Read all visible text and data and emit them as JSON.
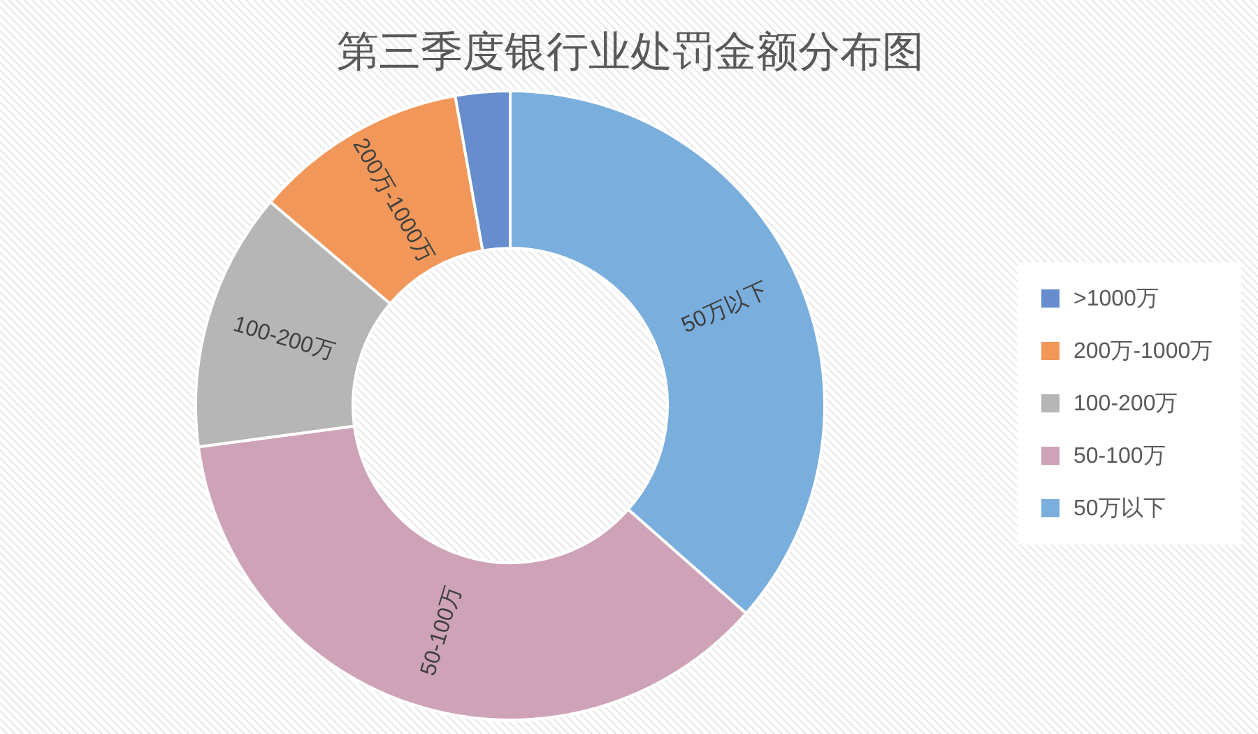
{
  "chart_data": {
    "type": "donut",
    "title": "第三季度银行业处罚金额分布图",
    "categories": [
      "50万以下",
      "50-100万",
      "100-200万",
      "200万-1000万",
      ">1000万"
    ],
    "values": [
      36.5,
      36.4,
      13.3,
      11.0,
      2.8
    ],
    "colors": [
      "#7aaedd",
      "#cfa3b7",
      "#b6b6b6",
      "#f19759",
      "#678dce"
    ],
    "annotations": [
      {
        "text": "50万以下",
        "x": "50万以下"
      },
      {
        "text": "50-100万",
        "x": "50-100万"
      },
      {
        "text": "100-200万",
        "x": "100-200万"
      },
      {
        "text": "200万-1000万",
        "x": "200万-1000万"
      }
    ],
    "legend": "right"
  }
}
